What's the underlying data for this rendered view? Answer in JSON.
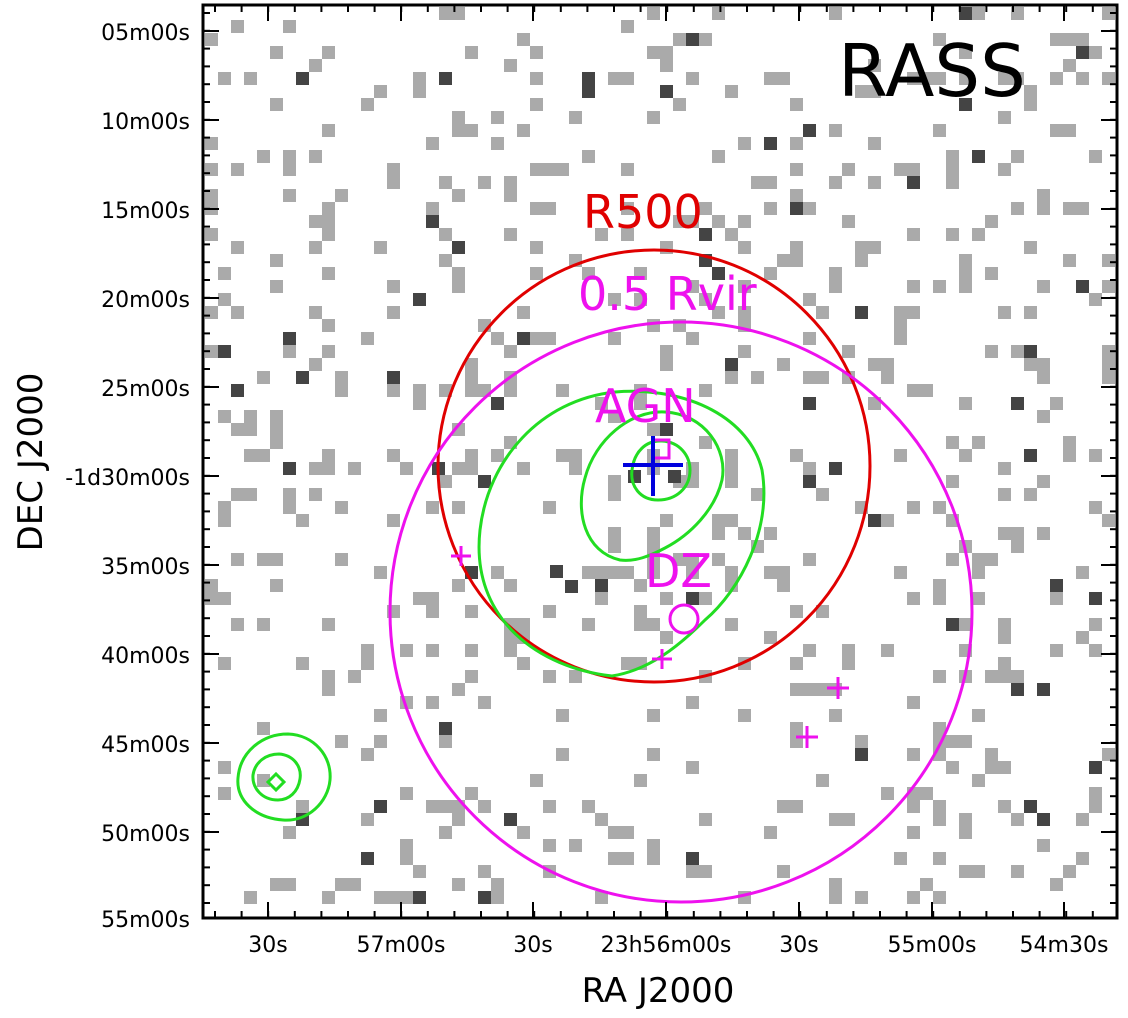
{
  "survey_label": "RASS",
  "axes": {
    "x_title": "RA J2000",
    "y_title": "DEC J2000",
    "x_ticks": [
      "30s",
      "57m00s",
      "30s",
      "23h56m00s",
      "30s",
      "55m00s",
      "54m30s"
    ],
    "y_ticks": [
      "05m00s",
      "10m00s",
      "15m00s",
      "20m00s",
      "25m00s",
      "-1d30m00s",
      "35m00s",
      "40m00s",
      "45m00s",
      "50m00s",
      "55m00s"
    ]
  },
  "annotations": {
    "r500": "R500",
    "half_rvir": "0.5 Rvir",
    "agn": "AGN",
    "dz": "DZ"
  },
  "colors": {
    "r500": "#e00000",
    "half_rvir": "#ee11ee",
    "contour": "#22dd22",
    "center_cross": "#0000dd",
    "pixel_light": "#aaaaaa",
    "pixel_dark": "#444444"
  },
  "markers": [
    "magenta-plus",
    "magenta-plus",
    "magenta-plus",
    "magenta-plus",
    "magenta-circle-dz",
    "blue-plus-center",
    "magenta-square-agn"
  ]
}
